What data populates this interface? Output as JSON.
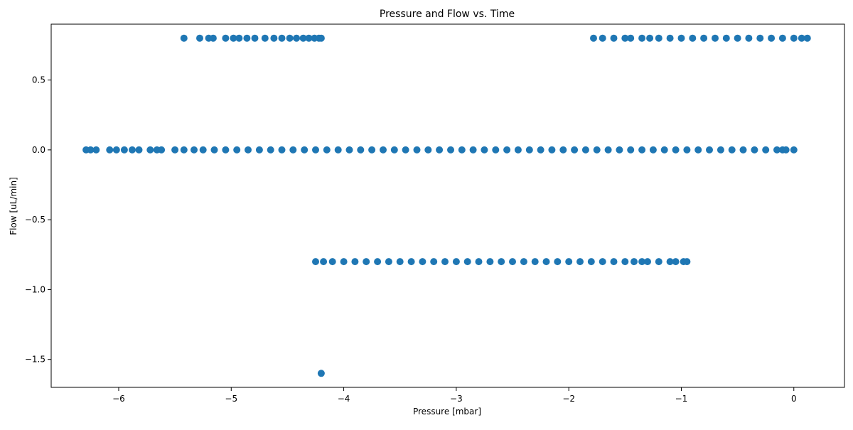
{
  "chart_data": {
    "type": "scatter",
    "title": "Pressure and Flow vs. Time",
    "xlabel": "Pressure [mbar]",
    "ylabel": "Flow [uL/min]",
    "xlim": [
      -6.6,
      0.45
    ],
    "ylim": [
      -1.7,
      0.9
    ],
    "xticks": [
      -6,
      -5,
      -4,
      -3,
      -2,
      -1,
      0
    ],
    "yticks": [
      -1.5,
      -1.0,
      -0.5,
      0.0,
      0.5
    ],
    "xtick_labels": [
      "−6",
      "−5",
      "−4",
      "−3",
      "−2",
      "−1",
      "0"
    ],
    "ytick_labels": [
      "−1.5",
      "−1.0",
      "−0.5",
      "0.0",
      "0.5"
    ],
    "grid": false,
    "legend": "none",
    "marker_color": "#1f77b4",
    "series": [
      {
        "points": [
          [
            -5.42,
            0.8
          ],
          [
            -5.28,
            0.8
          ],
          [
            -5.2,
            0.8
          ],
          [
            -5.16,
            0.8
          ],
          [
            -5.05,
            0.8
          ],
          [
            -4.98,
            0.8
          ],
          [
            -4.93,
            0.8
          ],
          [
            -4.86,
            0.8
          ],
          [
            -4.79,
            0.8
          ],
          [
            -4.7,
            0.8
          ],
          [
            -4.62,
            0.8
          ],
          [
            -4.55,
            0.8
          ],
          [
            -4.48,
            0.8
          ],
          [
            -4.42,
            0.8
          ],
          [
            -4.36,
            0.8
          ],
          [
            -4.31,
            0.8
          ],
          [
            -4.26,
            0.8
          ],
          [
            -4.22,
            0.8
          ],
          [
            -4.2,
            0.8
          ],
          [
            -1.78,
            0.8
          ],
          [
            -1.7,
            0.8
          ],
          [
            -1.6,
            0.8
          ],
          [
            -1.5,
            0.8
          ],
          [
            -1.45,
            0.8
          ],
          [
            -1.35,
            0.8
          ],
          [
            -1.28,
            0.8
          ],
          [
            -1.2,
            0.8
          ],
          [
            -1.1,
            0.8
          ],
          [
            -1.0,
            0.8
          ],
          [
            -0.9,
            0.8
          ],
          [
            -0.8,
            0.8
          ],
          [
            -0.7,
            0.8
          ],
          [
            -0.6,
            0.8
          ],
          [
            -0.5,
            0.8
          ],
          [
            -0.4,
            0.8
          ],
          [
            -0.3,
            0.8
          ],
          [
            -0.2,
            0.8
          ],
          [
            -0.1,
            0.8
          ],
          [
            0.0,
            0.8
          ],
          [
            0.07,
            0.8
          ],
          [
            0.12,
            0.8
          ],
          [
            -6.29,
            0.0
          ],
          [
            -6.25,
            0.0
          ],
          [
            -6.2,
            0.0
          ],
          [
            -6.08,
            0.0
          ],
          [
            -6.02,
            0.0
          ],
          [
            -5.95,
            0.0
          ],
          [
            -5.88,
            0.0
          ],
          [
            -5.82,
            0.0
          ],
          [
            -5.72,
            0.0
          ],
          [
            -5.66,
            0.0
          ],
          [
            -5.62,
            0.0
          ],
          [
            -5.5,
            0.0
          ],
          [
            -5.42,
            0.0
          ],
          [
            -5.33,
            0.0
          ],
          [
            -5.25,
            0.0
          ],
          [
            -5.15,
            0.0
          ],
          [
            -5.05,
            0.0
          ],
          [
            -4.95,
            0.0
          ],
          [
            -4.85,
            0.0
          ],
          [
            -4.75,
            0.0
          ],
          [
            -4.65,
            0.0
          ],
          [
            -4.55,
            0.0
          ],
          [
            -4.45,
            0.0
          ],
          [
            -4.35,
            0.0
          ],
          [
            -4.25,
            0.0
          ],
          [
            -4.15,
            0.0
          ],
          [
            -4.05,
            0.0
          ],
          [
            -3.95,
            0.0
          ],
          [
            -3.85,
            0.0
          ],
          [
            -3.75,
            0.0
          ],
          [
            -3.65,
            0.0
          ],
          [
            -3.55,
            0.0
          ],
          [
            -3.45,
            0.0
          ],
          [
            -3.35,
            0.0
          ],
          [
            -3.25,
            0.0
          ],
          [
            -3.15,
            0.0
          ],
          [
            -3.05,
            0.0
          ],
          [
            -2.95,
            0.0
          ],
          [
            -2.85,
            0.0
          ],
          [
            -2.75,
            0.0
          ],
          [
            -2.65,
            0.0
          ],
          [
            -2.55,
            0.0
          ],
          [
            -2.45,
            0.0
          ],
          [
            -2.35,
            0.0
          ],
          [
            -2.25,
            0.0
          ],
          [
            -2.15,
            0.0
          ],
          [
            -2.05,
            0.0
          ],
          [
            -1.95,
            0.0
          ],
          [
            -1.85,
            0.0
          ],
          [
            -1.75,
            0.0
          ],
          [
            -1.65,
            0.0
          ],
          [
            -1.55,
            0.0
          ],
          [
            -1.45,
            0.0
          ],
          [
            -1.35,
            0.0
          ],
          [
            -1.25,
            0.0
          ],
          [
            -1.15,
            0.0
          ],
          [
            -1.05,
            0.0
          ],
          [
            -0.95,
            0.0
          ],
          [
            -0.85,
            0.0
          ],
          [
            -0.75,
            0.0
          ],
          [
            -0.65,
            0.0
          ],
          [
            -0.55,
            0.0
          ],
          [
            -0.45,
            0.0
          ],
          [
            -0.35,
            0.0
          ],
          [
            -0.25,
            0.0
          ],
          [
            -0.15,
            0.0
          ],
          [
            -0.1,
            0.0
          ],
          [
            -0.07,
            0.0
          ],
          [
            0.0,
            0.0
          ],
          [
            -4.25,
            -0.8
          ],
          [
            -4.18,
            -0.8
          ],
          [
            -4.1,
            -0.8
          ],
          [
            -4.0,
            -0.8
          ],
          [
            -3.9,
            -0.8
          ],
          [
            -3.8,
            -0.8
          ],
          [
            -3.7,
            -0.8
          ],
          [
            -3.6,
            -0.8
          ],
          [
            -3.5,
            -0.8
          ],
          [
            -3.4,
            -0.8
          ],
          [
            -3.3,
            -0.8
          ],
          [
            -3.2,
            -0.8
          ],
          [
            -3.1,
            -0.8
          ],
          [
            -3.0,
            -0.8
          ],
          [
            -2.9,
            -0.8
          ],
          [
            -2.8,
            -0.8
          ],
          [
            -2.7,
            -0.8
          ],
          [
            -2.6,
            -0.8
          ],
          [
            -2.5,
            -0.8
          ],
          [
            -2.4,
            -0.8
          ],
          [
            -2.3,
            -0.8
          ],
          [
            -2.2,
            -0.8
          ],
          [
            -2.1,
            -0.8
          ],
          [
            -2.0,
            -0.8
          ],
          [
            -1.9,
            -0.8
          ],
          [
            -1.8,
            -0.8
          ],
          [
            -1.7,
            -0.8
          ],
          [
            -1.6,
            -0.8
          ],
          [
            -1.5,
            -0.8
          ],
          [
            -1.42,
            -0.8
          ],
          [
            -1.35,
            -0.8
          ],
          [
            -1.3,
            -0.8
          ],
          [
            -1.2,
            -0.8
          ],
          [
            -1.1,
            -0.8
          ],
          [
            -1.05,
            -0.8
          ],
          [
            -0.98,
            -0.8
          ],
          [
            -0.95,
            -0.8
          ],
          [
            -4.2,
            -1.6
          ]
        ]
      }
    ]
  }
}
